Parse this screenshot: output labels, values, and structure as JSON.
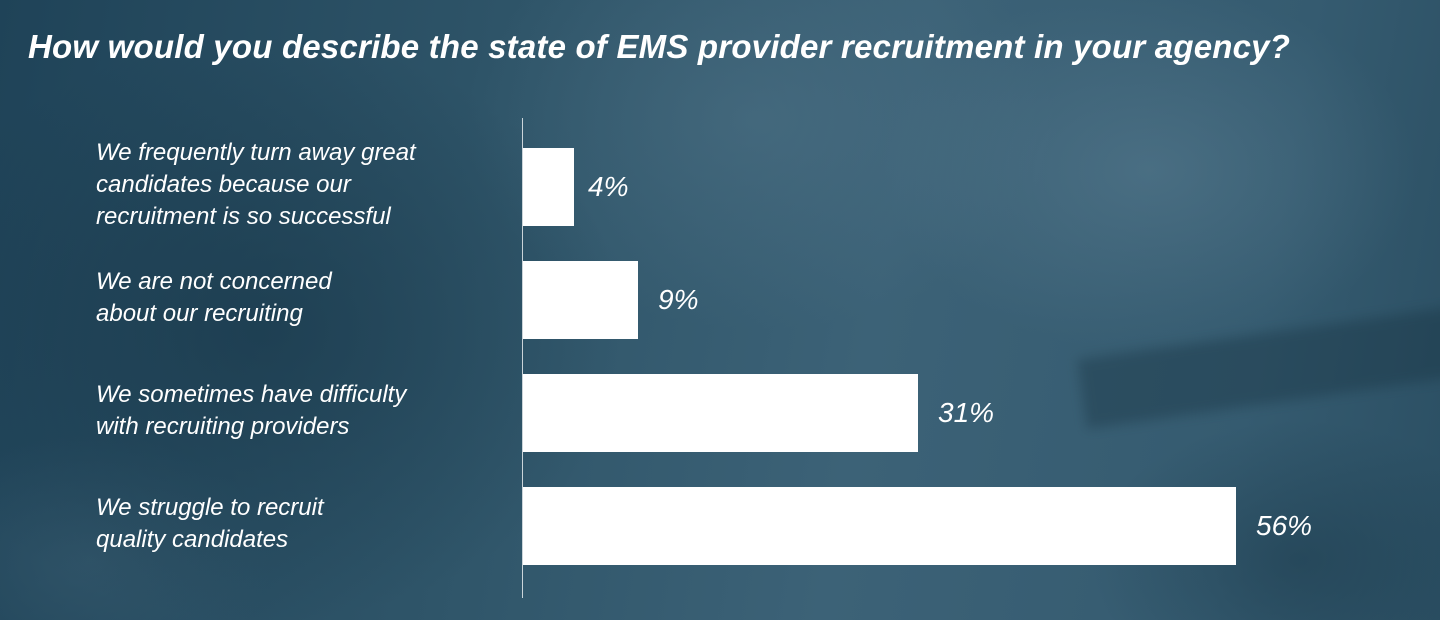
{
  "chart_data": {
    "type": "bar",
    "orientation": "horizontal",
    "title": "How would you describe the state of EMS provider recruitment in your agency?",
    "categories": [
      "We frequently turn away great\ncandidates because our\nrecruitment is so successful",
      "We are not concerned\nabout our recruiting",
      "We sometimes have difficulty\nwith recruiting providers",
      "We struggle to recruit\nquality candidates"
    ],
    "values": [
      4,
      9,
      31,
      56
    ],
    "value_labels": [
      "4%",
      "9%",
      "31%",
      "56%"
    ],
    "unit": "%",
    "xlim": [
      0,
      56
    ],
    "grid": false,
    "legend": "none",
    "colors": {
      "bar": "#ffffff",
      "text": "#ffffff",
      "background": "#2c4e61"
    }
  }
}
